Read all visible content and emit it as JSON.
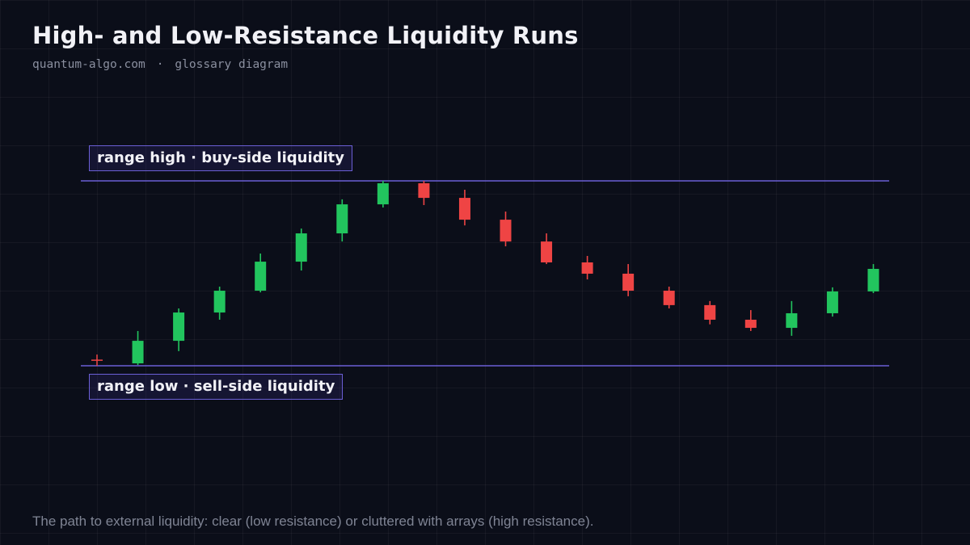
{
  "header": {
    "title": "High- and Low-Resistance Liquidity Runs",
    "source": "quantum-algo.com",
    "separator": "·",
    "tag": "glossary diagram"
  },
  "levels": {
    "range_high_label": "range high · buy-side liquidity",
    "range_low_label": "range low · sell-side liquidity",
    "range_high_price": 100,
    "range_low_price": 0
  },
  "caption": "The path to external liquidity: clear (low resistance) or cluttered with arrays (high resistance).",
  "colors": {
    "bull": "#22c55e",
    "bear": "#ef4444",
    "level_line": "#6b5fd6",
    "marker": "#ef4444"
  },
  "chart_data": {
    "type": "candlestick",
    "marker": {
      "index": 0,
      "price": 3,
      "shape": "plus"
    },
    "candles": [
      {
        "o": 1.3,
        "h": 18.8,
        "l": 0.4,
        "c": 13.5
      },
      {
        "o": 13.5,
        "h": 31.0,
        "l": 7.9,
        "c": 28.8
      },
      {
        "o": 28.8,
        "h": 42.8,
        "l": 24.9,
        "c": 40.6
      },
      {
        "o": 40.6,
        "h": 60.7,
        "l": 39.7,
        "c": 56.3
      },
      {
        "o": 56.3,
        "h": 74.2,
        "l": 51.5,
        "c": 71.6
      },
      {
        "o": 71.6,
        "h": 90.0,
        "l": 67.2,
        "c": 87.3
      },
      {
        "o": 87.3,
        "h": 100.0,
        "l": 85.6,
        "c": 98.7
      },
      {
        "o": 98.7,
        "h": 100.0,
        "l": 86.9,
        "c": 90.8
      },
      {
        "o": 90.8,
        "h": 95.2,
        "l": 75.9,
        "c": 79.0
      },
      {
        "o": 79.0,
        "h": 83.4,
        "l": 64.6,
        "c": 67.2
      },
      {
        "o": 67.2,
        "h": 71.6,
        "l": 55.0,
        "c": 55.9
      },
      {
        "o": 55.9,
        "h": 59.4,
        "l": 46.7,
        "c": 49.8
      },
      {
        "o": 49.8,
        "h": 55.0,
        "l": 37.6,
        "c": 40.6
      },
      {
        "o": 40.6,
        "h": 42.8,
        "l": 31.0,
        "c": 32.8
      },
      {
        "o": 32.8,
        "h": 35.0,
        "l": 22.4,
        "c": 24.9
      },
      {
        "o": 24.9,
        "h": 30.1,
        "l": 18.8,
        "c": 20.5
      },
      {
        "o": 20.5,
        "h": 35.0,
        "l": 16.2,
        "c": 28.4
      },
      {
        "o": 28.4,
        "h": 42.4,
        "l": 26.6,
        "c": 40.2
      },
      {
        "o": 40.2,
        "h": 55.0,
        "l": 39.3,
        "c": 52.4
      }
    ]
  }
}
